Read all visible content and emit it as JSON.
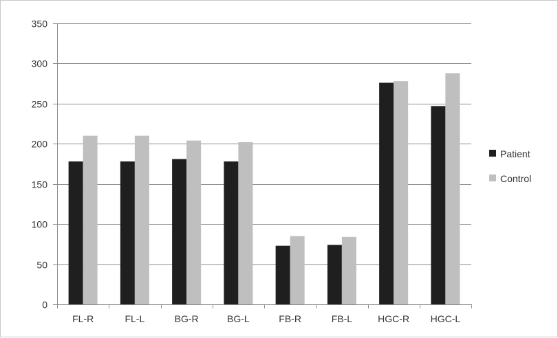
{
  "chart_data": {
    "type": "bar",
    "categories": [
      "FL-R",
      "FL-L",
      "BG-R",
      "BG-L",
      "FB-R",
      "FB-L",
      "HGC-R",
      "HGC-L"
    ],
    "series": [
      {
        "name": "Patient",
        "color": "#1f1f1f",
        "values": [
          178,
          178,
          181,
          178,
          73,
          74,
          276,
          247
        ]
      },
      {
        "name": "Control",
        "color": "#bfbfbf",
        "values": [
          210,
          210,
          204,
          202,
          85,
          84,
          278,
          288
        ]
      }
    ],
    "title": "",
    "xlabel": "",
    "ylabel": "",
    "ylim": [
      0,
      350
    ],
    "yticks": [
      0,
      50,
      100,
      150,
      200,
      250,
      300,
      350
    ],
    "grid": true,
    "legend_position": "right"
  }
}
